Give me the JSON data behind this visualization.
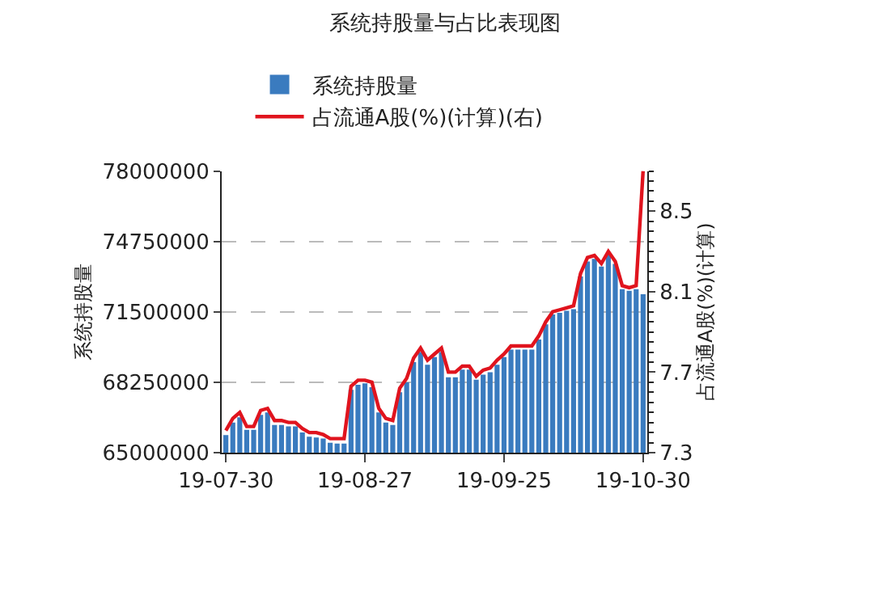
{
  "chart_data": {
    "type": "bar",
    "title": "系统持股量与占比表现图",
    "ylabel": "系统持股量",
    "y2label": "占流通A股(%)(计算)",
    "categories": [
      "19-07-30",
      null,
      null,
      null,
      null,
      null,
      null,
      null,
      null,
      null,
      null,
      null,
      null,
      null,
      null,
      null,
      null,
      null,
      null,
      null,
      "19-08-27",
      null,
      null,
      null,
      null,
      null,
      null,
      null,
      null,
      null,
      null,
      null,
      null,
      null,
      null,
      null,
      null,
      null,
      null,
      null,
      "19-09-25",
      null,
      null,
      null,
      null,
      null,
      null,
      null,
      null,
      null,
      null,
      null,
      null,
      null,
      null,
      null,
      null,
      null,
      null,
      null,
      "19-10-30"
    ],
    "series": [
      {
        "name": "系统持股量",
        "color": "#3a7bbf",
        "values": [
          65810000,
          66390000,
          66630000,
          66050000,
          66050000,
          66740000,
          66860000,
          66280000,
          66280000,
          66210000,
          66210000,
          65930000,
          65740000,
          65700000,
          65650000,
          65460000,
          65420000,
          65420000,
          67900000,
          68130000,
          68200000,
          68020000,
          66860000,
          66390000,
          66280000,
          67790000,
          68250000,
          69180000,
          69640000,
          69060000,
          69410000,
          69640000,
          68480000,
          68480000,
          68830000,
          68830000,
          68370000,
          68600000,
          68710000,
          69060000,
          69410000,
          69760000,
          69760000,
          69760000,
          69760000,
          70220000,
          70920000,
          71380000,
          71450000,
          71550000,
          71620000,
          73130000,
          73820000,
          73940000,
          73590000,
          74170000,
          73710000,
          72540000,
          72470000,
          72540000,
          72310000
        ]
      },
      {
        "name": "占流通A股(%)(计算)(右)",
        "color": "#e0141e",
        "type": "line",
        "axis": "y2",
        "values": [
          7.41,
          7.47,
          7.5,
          7.43,
          7.43,
          7.51,
          7.52,
          7.46,
          7.46,
          7.45,
          7.45,
          7.42,
          7.4,
          7.4,
          7.39,
          7.37,
          7.37,
          7.37,
          7.63,
          7.66,
          7.66,
          7.65,
          7.52,
          7.47,
          7.46,
          7.62,
          7.67,
          7.77,
          7.82,
          7.76,
          7.79,
          7.82,
          7.7,
          7.7,
          7.73,
          7.73,
          7.68,
          7.71,
          7.72,
          7.76,
          7.79,
          7.83,
          7.83,
          7.83,
          7.83,
          7.88,
          7.95,
          8.0,
          8.01,
          8.02,
          8.03,
          8.19,
          8.27,
          8.28,
          8.24,
          8.3,
          8.25,
          8.13,
          8.12,
          8.13,
          8.7
        ]
      }
    ],
    "ylim": [
      65000000,
      78000000
    ],
    "yticks": [
      65000000,
      68250000,
      71500000,
      74750000,
      78000000
    ],
    "y2lim": [
      7.3,
      8.7
    ],
    "y2ticks": [
      7.3,
      7.7,
      8.1,
      8.5
    ],
    "grid": "y",
    "legend": "top",
    "marker": "none",
    "line_style": "solid"
  }
}
